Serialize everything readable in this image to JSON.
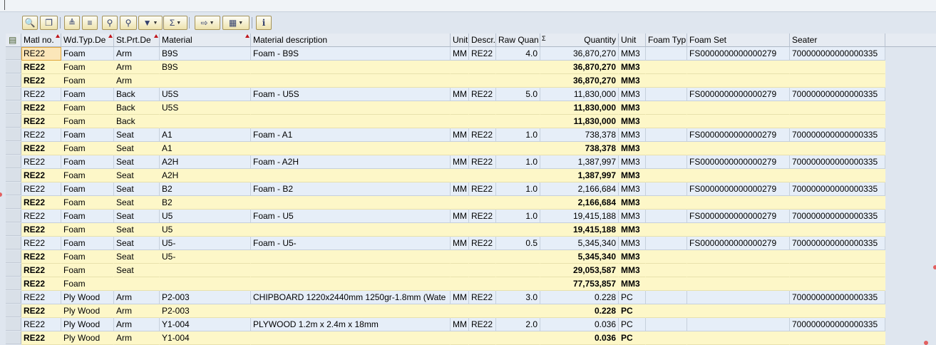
{
  "toolbar": {
    "buttons": [
      {
        "name": "details-button",
        "icon": "magnifier-icon",
        "glyph": "🔍"
      },
      {
        "name": "copy-button",
        "icon": "copy-icon",
        "glyph": "❐"
      },
      {
        "name": "sort-ascending-button",
        "icon": "sort-asc-icon",
        "glyph": "≜"
      },
      {
        "name": "sort-descending-button",
        "icon": "sort-desc-icon",
        "glyph": "≡"
      },
      {
        "name": "find-button",
        "icon": "binoculars-icon",
        "glyph": "⚲"
      },
      {
        "name": "find-next-button",
        "icon": "binoculars-next-icon",
        "glyph": "⚲"
      },
      {
        "name": "filter-button",
        "icon": "filter-icon",
        "glyph": "▼"
      },
      {
        "name": "total-button",
        "icon": "sum-icon",
        "glyph": "Σ"
      },
      {
        "name": "export-button",
        "icon": "export-icon",
        "glyph": "⇨"
      },
      {
        "name": "layout-button",
        "icon": "layout-grid-icon",
        "glyph": "▦"
      },
      {
        "name": "info-button",
        "icon": "info-icon",
        "glyph": "i"
      }
    ],
    "splitter": "....."
  },
  "columns": [
    {
      "label": "Matl no.",
      "sorted": true
    },
    {
      "label": "Wd.Typ.De",
      "sorted": true
    },
    {
      "label": "St.Prt.De",
      "sorted": true
    },
    {
      "label": "Material",
      "sorted": true
    },
    {
      "label": "Material description"
    },
    {
      "label": "Unit"
    },
    {
      "label": "Descr."
    },
    {
      "label": "Raw Quan"
    },
    {
      "label": "Quantity",
      "sum_marker": "Σ"
    },
    {
      "label": "Unit"
    },
    {
      "label": "Foam Typ"
    },
    {
      "label": "Foam Set"
    },
    {
      "label": "Seater"
    }
  ],
  "rows": [
    {
      "type": "detail",
      "cells": [
        "RE22",
        "Foam",
        "Arm",
        "B9S",
        "Foam - B9S",
        "MM",
        "RE22",
        "4.0",
        "36,870,270",
        "MM3",
        "",
        "FS0000000000000279",
        "700000000000000335"
      ]
    },
    {
      "type": "sum",
      "cells": [
        "RE22",
        "Foam",
        "Arm",
        "B9S",
        "",
        "",
        "",
        "",
        "36,870,270",
        "MM3",
        "",
        "",
        ""
      ]
    },
    {
      "type": "sum",
      "cells": [
        "RE22",
        "Foam",
        "Arm",
        "",
        "",
        "",
        "",
        "",
        "36,870,270",
        "MM3",
        "",
        "",
        ""
      ]
    },
    {
      "type": "detail",
      "cells": [
        "RE22",
        "Foam",
        "Back",
        "U5S",
        "Foam - U5S",
        "MM",
        "RE22",
        "5.0",
        "11,830,000",
        "MM3",
        "",
        "FS0000000000000279",
        "700000000000000335"
      ]
    },
    {
      "type": "sum",
      "cells": [
        "RE22",
        "Foam",
        "Back",
        "U5S",
        "",
        "",
        "",
        "",
        "11,830,000",
        "MM3",
        "",
        "",
        ""
      ]
    },
    {
      "type": "sum",
      "cells": [
        "RE22",
        "Foam",
        "Back",
        "",
        "",
        "",
        "",
        "",
        "11,830,000",
        "MM3",
        "",
        "",
        ""
      ]
    },
    {
      "type": "detail",
      "cells": [
        "RE22",
        "Foam",
        "Seat",
        "A1",
        "Foam - A1",
        "MM",
        "RE22",
        "1.0",
        "738,378",
        "MM3",
        "",
        "FS0000000000000279",
        "700000000000000335"
      ]
    },
    {
      "type": "sum",
      "cells": [
        "RE22",
        "Foam",
        "Seat",
        "A1",
        "",
        "",
        "",
        "",
        "738,378",
        "MM3",
        "",
        "",
        ""
      ]
    },
    {
      "type": "detail",
      "cells": [
        "RE22",
        "Foam",
        "Seat",
        "A2H",
        "Foam - A2H",
        "MM",
        "RE22",
        "1.0",
        "1,387,997",
        "MM3",
        "",
        "FS0000000000000279",
        "700000000000000335"
      ]
    },
    {
      "type": "sum",
      "cells": [
        "RE22",
        "Foam",
        "Seat",
        "A2H",
        "",
        "",
        "",
        "",
        "1,387,997",
        "MM3",
        "",
        "",
        ""
      ]
    },
    {
      "type": "detail",
      "cells": [
        "RE22",
        "Foam",
        "Seat",
        "B2",
        "Foam - B2",
        "MM",
        "RE22",
        "1.0",
        "2,166,684",
        "MM3",
        "",
        "FS0000000000000279",
        "700000000000000335"
      ]
    },
    {
      "type": "sum",
      "cells": [
        "RE22",
        "Foam",
        "Seat",
        "B2",
        "",
        "",
        "",
        "",
        "2,166,684",
        "MM3",
        "",
        "",
        ""
      ]
    },
    {
      "type": "detail",
      "cells": [
        "RE22",
        "Foam",
        "Seat",
        "U5",
        "Foam - U5",
        "MM",
        "RE22",
        "1.0",
        "19,415,188",
        "MM3",
        "",
        "FS0000000000000279",
        "700000000000000335"
      ]
    },
    {
      "type": "sum",
      "cells": [
        "RE22",
        "Foam",
        "Seat",
        "U5",
        "",
        "",
        "",
        "",
        "19,415,188",
        "MM3",
        "",
        "",
        ""
      ]
    },
    {
      "type": "detail",
      "cells": [
        "RE22",
        "Foam",
        "Seat",
        "U5-",
        "Foam - U5-",
        "MM",
        "RE22",
        "0.5",
        "5,345,340",
        "MM3",
        "",
        "FS0000000000000279",
        "700000000000000335"
      ]
    },
    {
      "type": "sum",
      "cells": [
        "RE22",
        "Foam",
        "Seat",
        "U5-",
        "",
        "",
        "",
        "",
        "5,345,340",
        "MM3",
        "",
        "",
        ""
      ]
    },
    {
      "type": "sum",
      "cells": [
        "RE22",
        "Foam",
        "Seat",
        "",
        "",
        "",
        "",
        "",
        "29,053,587",
        "MM3",
        "",
        "",
        ""
      ]
    },
    {
      "type": "sum",
      "cells": [
        "RE22",
        "Foam",
        "",
        "",
        "",
        "",
        "",
        "",
        "77,753,857",
        "MM3",
        "",
        "",
        ""
      ]
    },
    {
      "type": "detail",
      "cells": [
        "RE22",
        "Ply Wood",
        "Arm",
        "P2-003",
        "CHIPBOARD 1220x2440mm 1250gr-1.8mm (Wate",
        "MM",
        "RE22",
        "3.0",
        "0.228",
        "PC",
        "",
        "",
        "700000000000000335"
      ]
    },
    {
      "type": "sum",
      "cells": [
        "RE22",
        "Ply Wood",
        "Arm",
        "P2-003",
        "",
        "",
        "",
        "",
        "0.228",
        "PC",
        "",
        "",
        ""
      ]
    },
    {
      "type": "detail",
      "cells": [
        "RE22",
        "Ply Wood",
        "Arm",
        "Y1-004",
        "PLYWOOD 1.2m x 2.4m x 18mm",
        "MM",
        "RE22",
        "2.0",
        "0.036",
        "PC",
        "",
        "",
        "700000000000000335"
      ]
    },
    {
      "type": "sum",
      "cells": [
        "RE22",
        "Ply Wood",
        "Arm",
        "Y1-004",
        "",
        "",
        "",
        "",
        "0.036",
        "PC",
        "",
        "",
        ""
      ]
    }
  ],
  "selected_cell": {
    "row": 0,
    "col": 0
  }
}
